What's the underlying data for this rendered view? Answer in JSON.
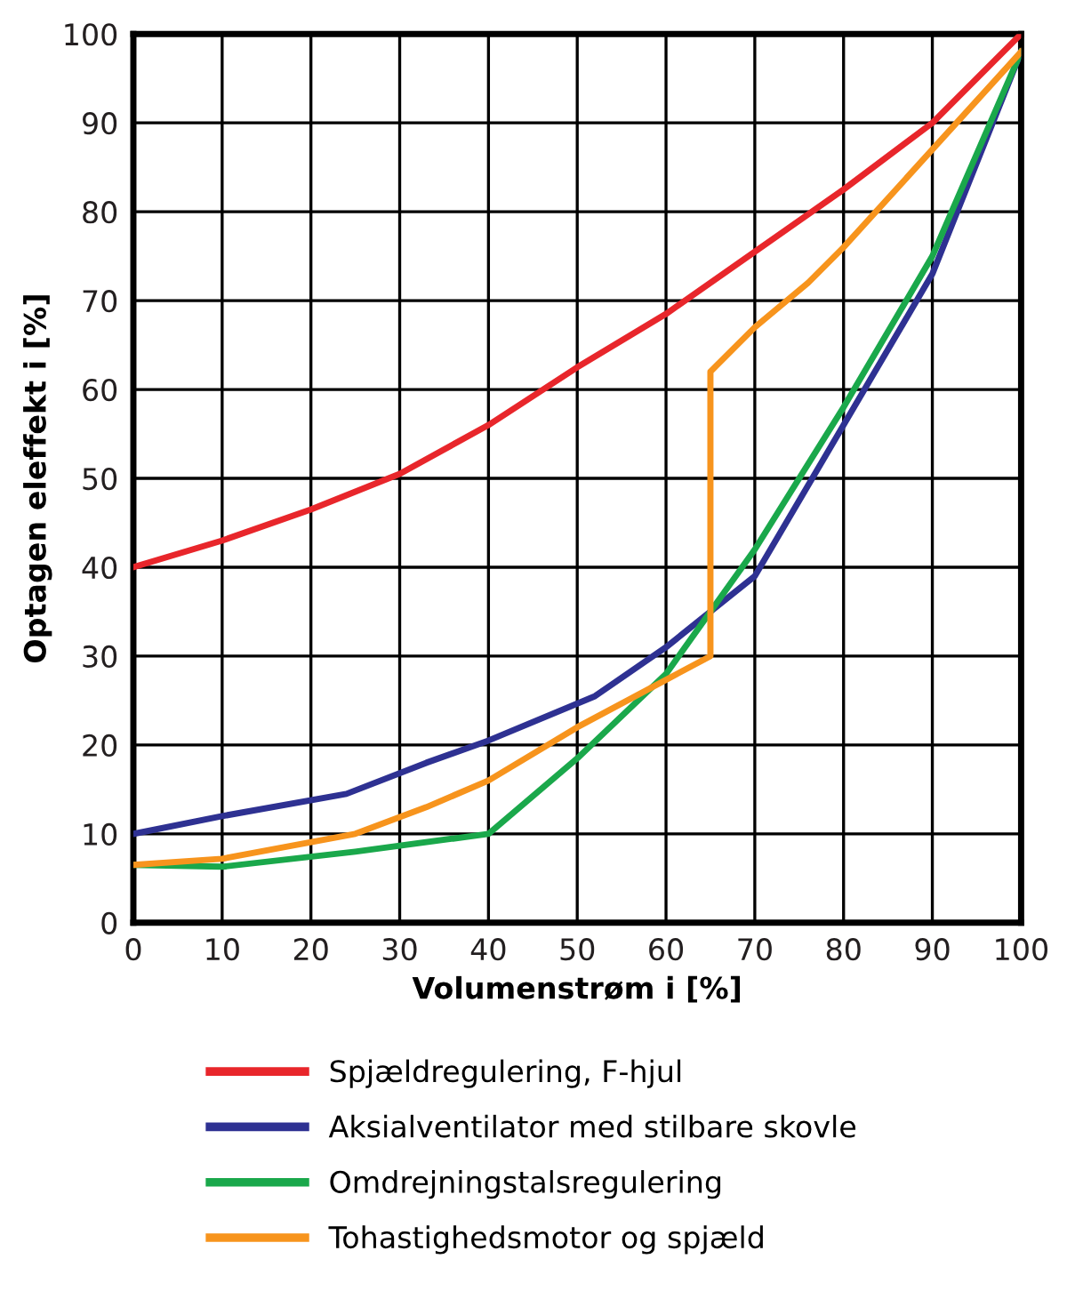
{
  "chart_data": {
    "type": "line",
    "xlabel": "Volumenstrøm i [%]",
    "ylabel": "Optagen eleffekt i [%]",
    "xlim": [
      0,
      100
    ],
    "ylim": [
      0,
      100
    ],
    "xticks": [
      0,
      10,
      20,
      30,
      40,
      50,
      60,
      70,
      80,
      90,
      100
    ],
    "yticks": [
      0,
      10,
      20,
      30,
      40,
      50,
      60,
      70,
      80,
      90,
      100
    ],
    "grid": true,
    "legend": "bottom",
    "marker": "none",
    "line_style": "solid",
    "series": [
      {
        "name": "Spjældregulering, F-hjul",
        "color": "#e8262b",
        "x": [
          0,
          10,
          20,
          30,
          40,
          50,
          60,
          70,
          80,
          90,
          100
        ],
        "values": [
          40,
          43,
          46.5,
          50.5,
          56,
          62.5,
          68.5,
          75.5,
          82.5,
          90,
          100
        ]
      },
      {
        "name": "Aksialventilator med stilbare skovle",
        "color": "#2e3192",
        "x": [
          0,
          10,
          24,
          33,
          40,
          52,
          60,
          70,
          80,
          90,
          100
        ],
        "values": [
          10,
          12,
          14.5,
          18,
          20.5,
          25.5,
          31,
          39,
          56,
          73,
          98
        ]
      },
      {
        "name": "Omdrejningstalsregulering",
        "color": "#1aa84b",
        "x": [
          0,
          10,
          25,
          40,
          50,
          60,
          70,
          80,
          90,
          100
        ],
        "values": [
          6.5,
          6.3,
          8,
          10,
          18.5,
          28,
          42,
          58,
          75,
          98
        ]
      },
      {
        "name": "Tohastighedsmotor og spjæld",
        "color": "#f7941d",
        "x": [
          0,
          10,
          25,
          33,
          40,
          50,
          65,
          65,
          70,
          76,
          80,
          90,
          100
        ],
        "values": [
          6.5,
          7.2,
          10,
          13,
          16,
          22,
          30,
          62,
          67,
          72,
          76,
          87,
          98
        ]
      }
    ]
  }
}
